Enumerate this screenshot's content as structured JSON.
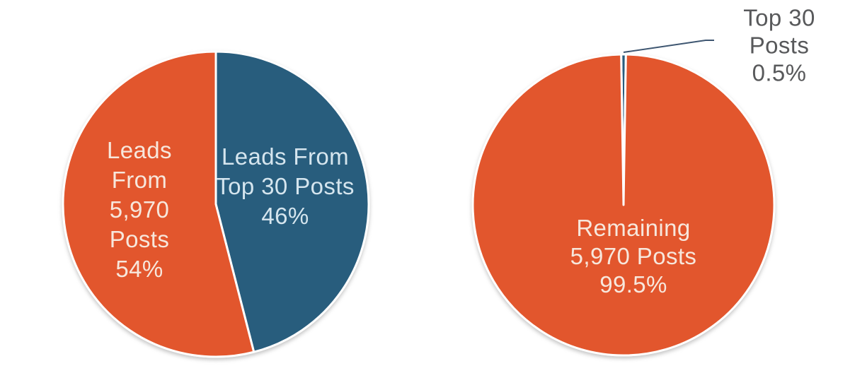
{
  "colors": {
    "orange": "#E2562D",
    "blue": "#285D7D",
    "label_on_orange": "#F7E7DC",
    "label_on_blue": "#D5E5EE",
    "callout_text": "#58595B",
    "callout_line": "#3E5671",
    "slice_border": "#FFFFFF",
    "background": "#FFFFFF"
  },
  "chart_data": [
    {
      "type": "pie",
      "id": "leads-by-post-group",
      "start_angle": 0,
      "legend": "none",
      "labels": "inside",
      "slices": [
        {
          "id": "leads-from-top-30-posts",
          "label": "Leads From Top 30 Posts",
          "value": 46,
          "unit": "%",
          "display": "Leads From\nTop 30 Posts\n46%",
          "color": "#285D7D"
        },
        {
          "id": "leads-from-5970-posts",
          "label": "Leads From 5,970 Posts",
          "value": 54,
          "unit": "%",
          "display": "Leads\nFrom\n5,970\nPosts\n54%",
          "color": "#E2562D"
        }
      ]
    },
    {
      "type": "pie",
      "id": "posts-by-group",
      "start_angle": -0.9,
      "legend": "none",
      "labels": "inside-with-callout",
      "slices": [
        {
          "id": "top-30-posts",
          "label": "Top 30 Posts",
          "value": 0.5,
          "unit": "%",
          "display": "Top 30 Posts\n0.5%",
          "color": "#285D7D"
        },
        {
          "id": "remaining-5970-posts",
          "label": "Remaining 5,970 Posts",
          "value": 99.5,
          "unit": "%",
          "display": "Remaining\n5,970 Posts\n99.5%",
          "color": "#E2562D"
        }
      ]
    }
  ]
}
